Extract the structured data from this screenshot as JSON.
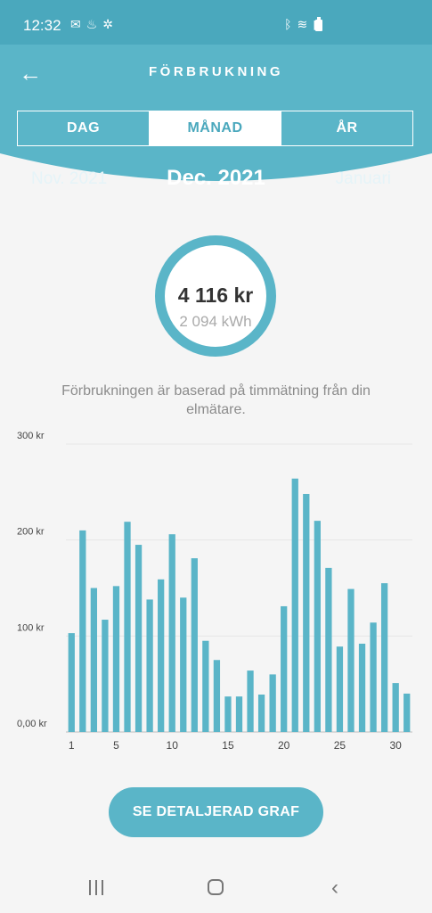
{
  "status_bar": {
    "time": "12:32",
    "left_icons": [
      "notification-icon",
      "alert-icon",
      "fan-icon"
    ],
    "right_icons": [
      "bluetooth-icon",
      "wifi-icon",
      "signal-icon",
      "battery-icon"
    ]
  },
  "header": {
    "title": "FÖRBRUKNING",
    "back_icon": "arrow-left-icon"
  },
  "tabs": [
    {
      "label": "DAG",
      "active": false
    },
    {
      "label": "MÅNAD",
      "active": true
    },
    {
      "label": "ÅR",
      "active": false
    }
  ],
  "months": {
    "previous": "Nov. 2021",
    "current": "Dec. 2021",
    "next": "Januari"
  },
  "summary": {
    "cost": "4 116 kr",
    "energy": "2 094 kWh"
  },
  "info_text": "Förbrukningen är baserad på timmätning från din elmätare.",
  "chart_data": {
    "type": "bar",
    "categories": [
      1,
      2,
      3,
      4,
      5,
      6,
      7,
      8,
      9,
      10,
      11,
      12,
      13,
      14,
      15,
      16,
      17,
      18,
      19,
      20,
      21,
      22,
      23,
      24,
      25,
      26,
      27,
      28,
      29,
      30,
      31
    ],
    "x_tick_labels": [
      "1",
      "5",
      "10",
      "15",
      "20",
      "25",
      "30"
    ],
    "x_tick_positions": [
      1,
      5,
      10,
      15,
      20,
      25,
      30
    ],
    "y_tick_labels": [
      "0,00 kr",
      "100 kr",
      "200 kr",
      "300 kr"
    ],
    "y_tick_values": [
      0,
      100,
      200,
      300
    ],
    "ylim": [
      0,
      300
    ],
    "values": [
      103,
      210,
      150,
      117,
      152,
      219,
      195,
      138,
      159,
      206,
      140,
      181,
      95,
      75,
      37,
      37,
      64,
      39,
      60,
      131,
      264,
      248,
      220,
      171,
      89,
      149,
      92,
      114,
      155,
      51,
      40
    ],
    "bar_color": "#5ab5c8",
    "grid": true
  },
  "cta_label": "SE DETALJERAD GRAF",
  "nav": {
    "recents_icon": "recents-icon",
    "home_icon": "home-icon",
    "back_icon": "back-icon"
  },
  "colors": {
    "primary": "#5ab5c8",
    "status_bar": "#4aa8bd"
  }
}
